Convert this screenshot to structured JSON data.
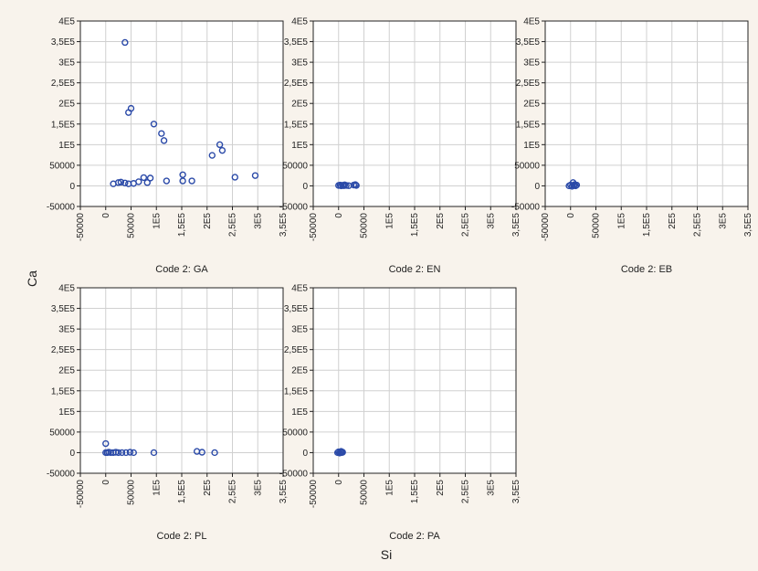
{
  "chart_data": {
    "type": "scatter",
    "xlabel": "Si",
    "ylabel": "Ca",
    "xlim": [
      -50000,
      350000
    ],
    "ylim": [
      -50000,
      400000
    ],
    "x_ticks": [
      -50000,
      0,
      50000,
      100000,
      150000,
      200000,
      250000,
      300000,
      350000
    ],
    "x_tick_labels": [
      "-50000",
      "0",
      "50000",
      "1E5",
      "1,5E5",
      "2E5",
      "2,5E5",
      "3E5",
      "3,5E5"
    ],
    "y_ticks": [
      -50000,
      0,
      50000,
      100000,
      150000,
      200000,
      250000,
      300000,
      350000,
      400000
    ],
    "y_tick_labels": [
      "-50000",
      "0",
      "50000",
      "1E5",
      "1,5E5",
      "2E5",
      "2,5E5",
      "3E5",
      "3,5E5",
      "4E5"
    ],
    "grid": true,
    "marker_color": "#2b4aa8",
    "panels": [
      {
        "caption": "Code 2: GA",
        "points": [
          [
            38000,
            348000
          ],
          [
            45000,
            178000
          ],
          [
            50000,
            188000
          ],
          [
            95000,
            150000
          ],
          [
            110000,
            127000
          ],
          [
            115000,
            110000
          ],
          [
            225000,
            100000
          ],
          [
            230000,
            86000
          ],
          [
            210000,
            74000
          ],
          [
            152000,
            27000
          ],
          [
            152000,
            12000
          ],
          [
            170000,
            12000
          ],
          [
            255000,
            21000
          ],
          [
            295000,
            25000
          ],
          [
            15000,
            5000
          ],
          [
            25000,
            8000
          ],
          [
            30000,
            9000
          ],
          [
            38000,
            7000
          ],
          [
            45000,
            5000
          ],
          [
            55000,
            6000
          ],
          [
            65000,
            10000
          ],
          [
            75000,
            20000
          ],
          [
            82000,
            8000
          ],
          [
            88000,
            19000
          ],
          [
            120000,
            12000
          ]
        ]
      },
      {
        "caption": "Code 2: EN",
        "points": [
          [
            0,
            1000
          ],
          [
            3000,
            2000
          ],
          [
            5000,
            0
          ],
          [
            8000,
            1500
          ],
          [
            10000,
            500
          ],
          [
            12000,
            2500
          ],
          [
            15000,
            1000
          ],
          [
            20000,
            500
          ],
          [
            30000,
            2000
          ],
          [
            33000,
            3000
          ],
          [
            35000,
            1000
          ]
        ]
      },
      {
        "caption": "Code 2: EB",
        "points": [
          [
            -3000,
            0
          ],
          [
            0,
            2000
          ],
          [
            3000,
            -1000
          ],
          [
            5000,
            8000
          ],
          [
            6000,
            1000
          ],
          [
            8000,
            3000
          ],
          [
            10000,
            0
          ],
          [
            12000,
            2000
          ]
        ]
      },
      {
        "caption": "Code 2: PL",
        "points": [
          [
            0,
            22000
          ],
          [
            0,
            0
          ],
          [
            3000,
            0
          ],
          [
            6000,
            1000
          ],
          [
            10000,
            0
          ],
          [
            15000,
            0
          ],
          [
            20000,
            1000
          ],
          [
            25000,
            0
          ],
          [
            32000,
            0
          ],
          [
            40000,
            0
          ],
          [
            48000,
            1000
          ],
          [
            55000,
            0
          ],
          [
            95000,
            0
          ],
          [
            180000,
            3000
          ],
          [
            190000,
            1000
          ],
          [
            215000,
            0
          ]
        ]
      },
      {
        "caption": "Code 2: PA",
        "points": [
          [
            -2000,
            0
          ],
          [
            0,
            2000
          ],
          [
            2000,
            -1000
          ],
          [
            4000,
            1000
          ],
          [
            5000,
            3000
          ],
          [
            6000,
            0
          ],
          [
            8000,
            1000
          ]
        ]
      }
    ]
  }
}
